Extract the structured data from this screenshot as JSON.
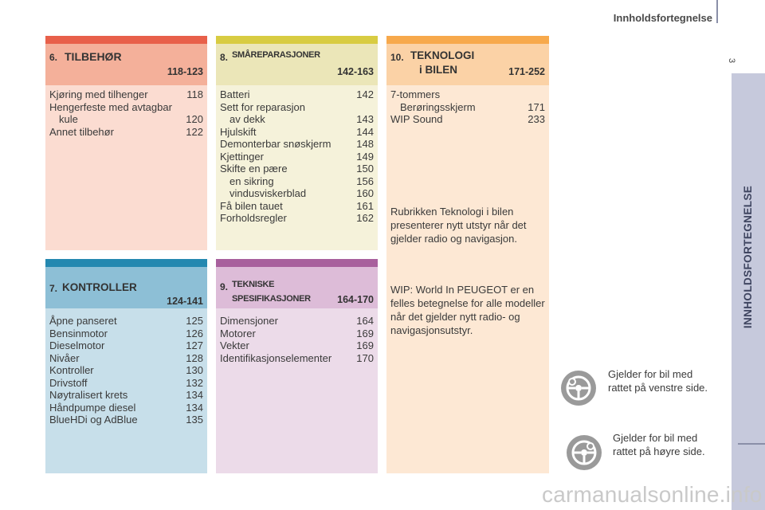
{
  "header": {
    "title": "Innholdsfortegnelse",
    "page_number": "3"
  },
  "side_tab": {
    "label": "INNHOLDSFORTEGNELSE"
  },
  "colors": {
    "s6_bar": "#e8604a",
    "s6_head": "#f4b09a",
    "s6_body": "#fbdcd1",
    "s7_bar": "#2488b0",
    "s7_head": "#8dbfd6",
    "s7_body": "#c7dfea",
    "s8_bar": "#d8cc42",
    "s8_head": "#ebe6b8",
    "s8_body": "#f5f2da",
    "s9_bar": "#a8609d",
    "s9_head": "#ddbcd8",
    "s9_body": "#ecdbe9",
    "s10_bar": "#f7a94c",
    "s10_head": "#fbd2a6",
    "s10_body": "#fde8d4"
  },
  "sections": {
    "s6": {
      "number": "6.",
      "title": "TILBEHØR",
      "pages": "118-123",
      "items": [
        {
          "label": "Kjøring med tilhenger",
          "page": "118"
        },
        {
          "label": "Hengerfeste med avtagbar",
          "page": ""
        },
        {
          "label": "kule",
          "page": "120"
        },
        {
          "label": "Annet tilbehør",
          "page": "122"
        }
      ]
    },
    "s7": {
      "number": "7.",
      "title": "KONTROLLER",
      "pages": "124-141",
      "items": [
        {
          "label": "Åpne panseret",
          "page": "125"
        },
        {
          "label": "Bensinmotor",
          "page": "126"
        },
        {
          "label": "Dieselmotor",
          "page": "127"
        },
        {
          "label": "Nivåer",
          "page": "128"
        },
        {
          "label": "Kontroller",
          "page": "130"
        },
        {
          "label": "Drivstoff",
          "page": "132"
        },
        {
          "label": "Nøytralisert krets",
          "page": "134"
        },
        {
          "label": "Håndpumpe diesel",
          "page": "134"
        },
        {
          "label": "BlueHDi og AdBlue",
          "page": "135"
        }
      ]
    },
    "s8": {
      "number": "8.",
      "title": "SMÅREPARASJONER",
      "pages": "142-163",
      "items": [
        {
          "label": "Batteri",
          "page": "142"
        },
        {
          "label": "Sett for reparasjon",
          "page": ""
        },
        {
          "label": "av dekk",
          "page": "143"
        },
        {
          "label": "Hjulskift",
          "page": "144"
        },
        {
          "label": "Demonterbar snøskjerm",
          "page": "148"
        },
        {
          "label": "Kjettinger",
          "page": "149"
        },
        {
          "label": "Skifte en pære",
          "page": "150"
        },
        {
          "label": "en sikring",
          "page": "156"
        },
        {
          "label": "vindusviskerblad",
          "page": "160"
        },
        {
          "label": "Få bilen tauet",
          "page": "161"
        },
        {
          "label": "Forholdsregler",
          "page": "162"
        }
      ]
    },
    "s9": {
      "number": "9.",
      "title_line1": "TEKNISKE",
      "title_line2": "SPESIFIKASJONER",
      "pages": "164-170",
      "items": [
        {
          "label": "Dimensjoner",
          "page": "164"
        },
        {
          "label": "Motorer",
          "page": "169"
        },
        {
          "label": "Vekter",
          "page": "169"
        },
        {
          "label": "Identifikasjonselementer",
          "page": "170"
        }
      ]
    },
    "s10": {
      "number": "10.",
      "title_line1": "TEKNOLOGI",
      "title_line2": "i BILEN",
      "pages": "171-252",
      "items": [
        {
          "label": "7-tommers",
          "page": ""
        },
        {
          "label": "Berøringsskjerm",
          "page": "171"
        },
        {
          "label": "WIP Sound",
          "page": "233"
        }
      ],
      "para1": "Rubrikken Teknologi i bilen presenterer nytt utstyr når det gjelder radio og navigasjon.",
      "para2": "WIP: World In PEUGEOT er en felles betegnelse for alle modeller når det gjelder nytt radio- og navigasjonsutstyr."
    }
  },
  "legend": {
    "left": {
      "icon": "left-hand-drive-icon",
      "text": "Gjelder for bil med rattet på venstre side."
    },
    "right": {
      "icon": "right-hand-drive-icon",
      "text": "Gjelder for bil med rattet på høyre side."
    }
  },
  "footer": {
    "watermark": "carmanualsonline.info"
  }
}
